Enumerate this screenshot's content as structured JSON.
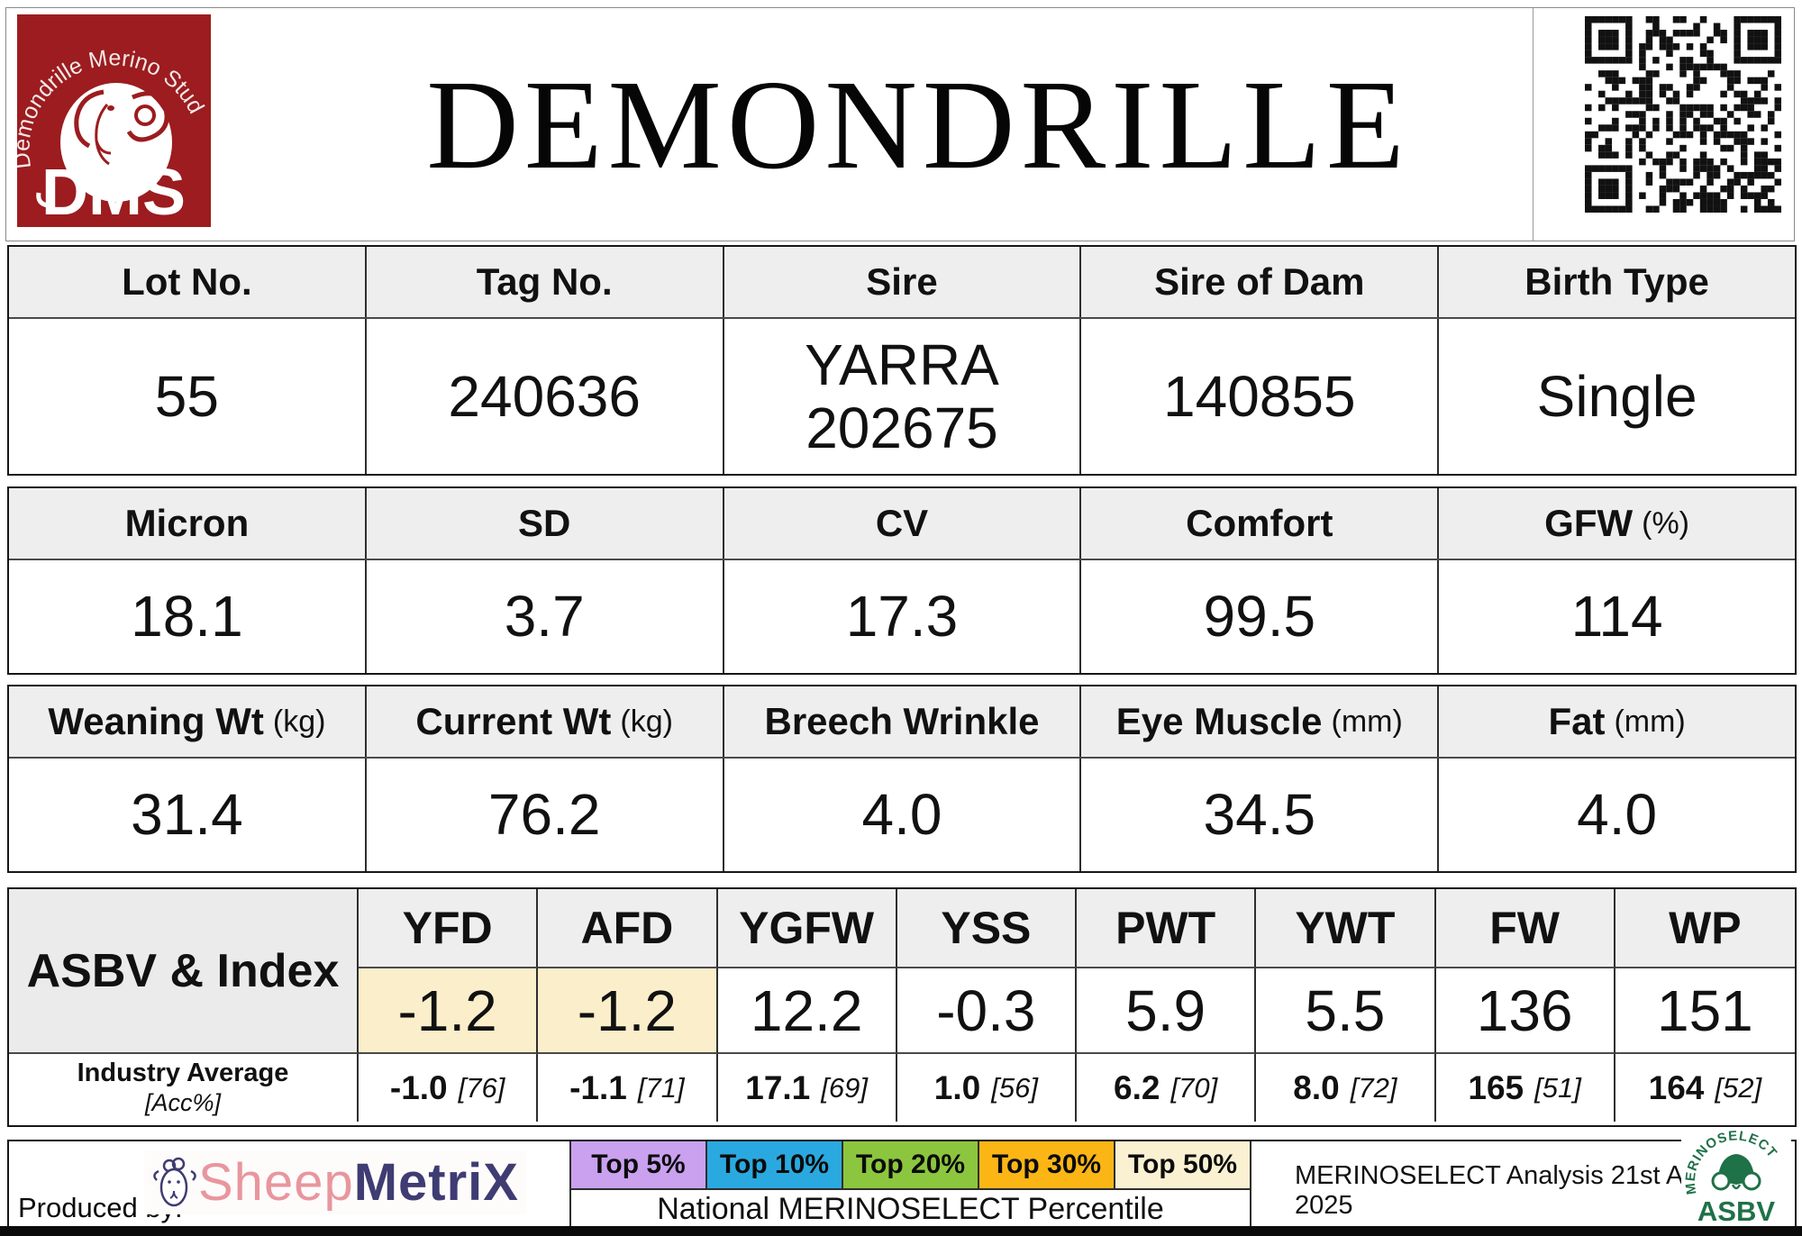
{
  "header": {
    "title": "DEMONDRILLE",
    "stud_logo": {
      "arc_text": "Demondrille Merino Stud",
      "initials": "DMS",
      "bg_color": "#9C1C1F"
    }
  },
  "identity_table": {
    "headers": [
      "Lot No.",
      "Tag No.",
      "Sire",
      "Sire of Dam",
      "Birth Type"
    ],
    "values": [
      "55",
      "240636",
      "YARRA 202675",
      "140855",
      "Single"
    ]
  },
  "wool_table": {
    "headers": [
      {
        "label": "Micron",
        "unit": ""
      },
      {
        "label": "SD",
        "unit": ""
      },
      {
        "label": "CV",
        "unit": ""
      },
      {
        "label": "Comfort",
        "unit": ""
      },
      {
        "label": "GFW",
        "unit": "(%)"
      }
    ],
    "values": [
      "18.1",
      "3.7",
      "17.3",
      "99.5",
      "114"
    ]
  },
  "body_table": {
    "headers": [
      {
        "label": "Weaning Wt",
        "unit": "(kg)"
      },
      {
        "label": "Current Wt",
        "unit": "(kg)"
      },
      {
        "label": "Breech Wrinkle",
        "unit": ""
      },
      {
        "label": "Eye Muscle",
        "unit": "(mm)"
      },
      {
        "label": "Fat",
        "unit": "(mm)"
      }
    ],
    "values": [
      "31.4",
      "76.2",
      "4.0",
      "34.5",
      "4.0"
    ]
  },
  "asbv_table": {
    "row_label": "ASBV & Index",
    "industry_label": "Industry Average",
    "industry_sublabel": "[Acc%]",
    "highlight_color": "#FBEECB",
    "columns": [
      {
        "trait": "YFD",
        "value": "-1.2",
        "highlight": "#FBEECB",
        "industry": "-1.0",
        "acc": "[76]"
      },
      {
        "trait": "AFD",
        "value": "-1.2",
        "highlight": "#FBEECB",
        "industry": "-1.1",
        "acc": "[71]"
      },
      {
        "trait": "YGFW",
        "value": "12.2",
        "industry": "17.1",
        "acc": "[69]"
      },
      {
        "trait": "YSS",
        "value": "-0.3",
        "industry": "1.0",
        "acc": "[56]"
      },
      {
        "trait": "PWT",
        "value": "5.9",
        "industry": "6.2",
        "acc": "[70]"
      },
      {
        "trait": "YWT",
        "value": "5.5",
        "industry": "8.0",
        "acc": "[72]"
      },
      {
        "trait": "FW",
        "value": "136",
        "industry": "165",
        "acc": "[51]"
      },
      {
        "trait": "WP",
        "value": "151",
        "industry": "164",
        "acc": "[52]"
      }
    ]
  },
  "footer": {
    "produced_by": "Produced by:",
    "sheepmetrix": {
      "prefix": "Sheep",
      "suffix": "MetriX",
      "pink": "#E8969E",
      "navy": "#3E3C72"
    },
    "percentile_bands": [
      {
        "label": "Top 5%",
        "color": "#C9A1EF"
      },
      {
        "label": "Top 10%",
        "color": "#2AA9E0"
      },
      {
        "label": "Top 20%",
        "color": "#8CC63E"
      },
      {
        "label": "Top 30%",
        "color": "#FBB616"
      },
      {
        "label": "Top 50%",
        "color": "#FAF1D3"
      }
    ],
    "percentile_caption": "National MERINOSELECT Percentile",
    "analysis_note": "MERINOSELECT Analysis 21st August 2025",
    "merinoselect_logo": {
      "arc_text": "MERINOSELECT",
      "main": "ASBV",
      "color": "#1F7148"
    }
  }
}
